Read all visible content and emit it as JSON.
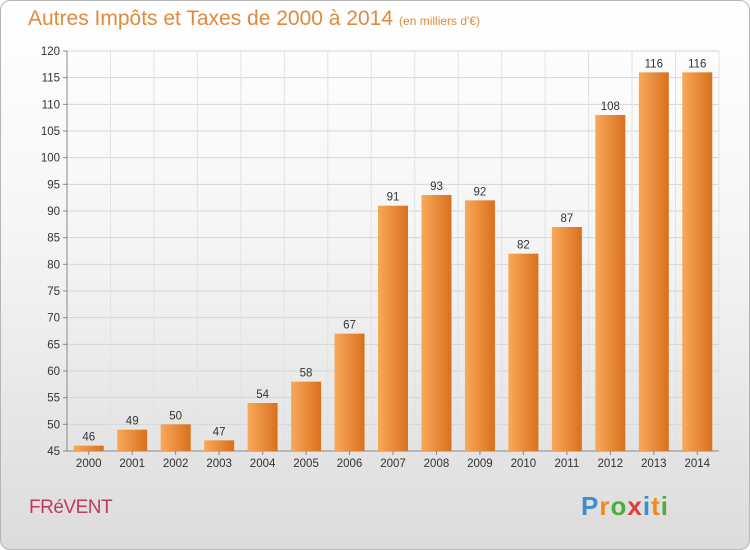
{
  "title": "Autres Impôts et Taxes de 2000 à 2014",
  "unit": "(en milliers d'€)",
  "town": "FRéVENT",
  "logo": {
    "letters": [
      "P",
      "r",
      "o",
      "x",
      "i",
      "t",
      "i"
    ],
    "colors": [
      "#3a8fd3",
      "#f08c1a",
      "#4cae3c",
      "#e43b3b",
      "#3a8fd3",
      "#f08c1a",
      "#4cae3c"
    ]
  },
  "colors": {
    "title": "#e08a3c",
    "town": "#c3385e",
    "bar_light": "#f8a95a",
    "bar_dark": "#d9701d"
  },
  "chart_data": {
    "type": "bar",
    "title": "Autres Impôts et Taxes de 2000 à 2014",
    "categories": [
      "2000",
      "2001",
      "2002",
      "2003",
      "2004",
      "2005",
      "2006",
      "2007",
      "2008",
      "2009",
      "2010",
      "2011",
      "2012",
      "2013",
      "2014"
    ],
    "values": [
      46,
      49,
      50,
      47,
      54,
      58,
      67,
      91,
      93,
      92,
      82,
      87,
      108,
      116,
      116
    ],
    "ylim": [
      45,
      120
    ],
    "yticks": [
      45,
      50,
      55,
      60,
      65,
      70,
      75,
      80,
      85,
      90,
      95,
      100,
      105,
      110,
      115,
      120
    ],
    "grid": true
  }
}
